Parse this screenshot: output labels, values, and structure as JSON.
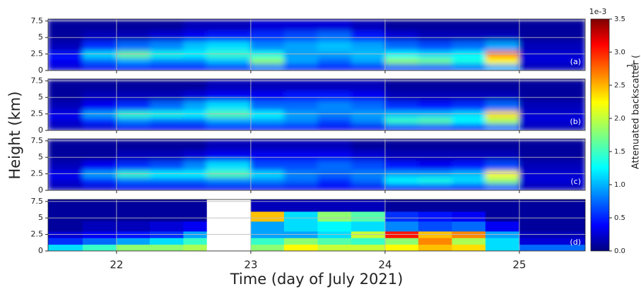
{
  "chart_data": [
    {
      "type": "heatmap",
      "label": "(a)",
      "xlim": [
        21.49,
        25.49
      ],
      "xticks": [
        22,
        23,
        24,
        25
      ],
      "ylim": [
        0,
        7.8
      ],
      "yticks": [
        0,
        2.5,
        5,
        7.5
      ],
      "x_bins": [
        21.49,
        21.75,
        22,
        22.25,
        22.5,
        22.67,
        23,
        23.25,
        23.5,
        23.75,
        24,
        24.25,
        24.5,
        24.75,
        25,
        25.49
      ],
      "y_bins": [
        0,
        1,
        2,
        3,
        4.5,
        6,
        7.8
      ],
      "clim": [
        0,
        3.5
      ],
      "colormap": "jet",
      "grid": true,
      "values": [
        [
          0.3,
          0.4,
          0.5,
          0.5,
          0.5,
          0.6,
          0.8,
          0.6,
          0.5,
          0.5,
          0.7,
          0.7,
          0.8,
          1.0,
          0.2
        ],
        [
          0.4,
          0.8,
          1.0,
          0.9,
          0.9,
          1.1,
          1.8,
          1.0,
          0.8,
          1.0,
          1.8,
          1.7,
          1.4,
          2.2,
          0.3
        ],
        [
          0.5,
          1.2,
          1.7,
          1.4,
          1.3,
          1.5,
          1.4,
          1.0,
          1.0,
          1.1,
          1.3,
          1.2,
          1.3,
          2.6,
          0.3
        ],
        [
          0.2,
          0.6,
          0.8,
          0.9,
          1.1,
          1.2,
          0.9,
          1.0,
          1.1,
          1.0,
          0.8,
          0.7,
          0.8,
          1.0,
          0.2
        ],
        [
          0.1,
          0.2,
          0.2,
          0.3,
          0.4,
          0.5,
          0.6,
          0.7,
          0.8,
          0.5,
          0.3,
          0.2,
          0.2,
          0.2,
          0.1
        ],
        [
          0.1,
          0.1,
          0.1,
          0.1,
          0.2,
          0.2,
          0.3,
          0.3,
          0.3,
          0.2,
          0.1,
          0.1,
          0.1,
          0.1,
          0.1
        ]
      ]
    },
    {
      "type": "heatmap",
      "label": "(b)",
      "xlim": [
        21.49,
        25.49
      ],
      "xticks": [
        22,
        23,
        24,
        25
      ],
      "ylim": [
        0,
        7.8
      ],
      "yticks": [
        0,
        2.5,
        5,
        7.5
      ],
      "x_bins": [
        21.49,
        21.75,
        22,
        22.25,
        22.5,
        22.67,
        23,
        23.25,
        23.5,
        23.75,
        24,
        24.25,
        24.5,
        24.75,
        25,
        25.49
      ],
      "y_bins": [
        0,
        1,
        2,
        3,
        4.5,
        6,
        7.8
      ],
      "clim": [
        0,
        3.5
      ],
      "colormap": "jet",
      "grid": true,
      "values": [
        [
          0.2,
          0.3,
          0.4,
          0.4,
          0.4,
          0.5,
          0.5,
          0.5,
          0.4,
          0.4,
          0.6,
          0.6,
          0.6,
          0.8,
          0.2
        ],
        [
          0.3,
          0.6,
          0.9,
          0.8,
          0.8,
          1.0,
          1.0,
          0.9,
          0.7,
          0.9,
          1.5,
          1.6,
          1.3,
          1.9,
          0.3
        ],
        [
          0.4,
          1.0,
          1.5,
          1.4,
          1.3,
          1.6,
          1.3,
          1.0,
          0.9,
          1.0,
          1.1,
          1.1,
          1.2,
          2.3,
          0.3
        ],
        [
          0.2,
          0.4,
          0.6,
          0.8,
          1.0,
          1.2,
          0.8,
          0.8,
          0.9,
          0.8,
          0.6,
          0.5,
          0.6,
          0.8,
          0.2
        ],
        [
          0.1,
          0.2,
          0.2,
          0.2,
          0.3,
          0.4,
          0.4,
          0.5,
          0.5,
          0.4,
          0.2,
          0.2,
          0.2,
          0.2,
          0.1
        ],
        [
          0.1,
          0.1,
          0.1,
          0.1,
          0.1,
          0.2,
          0.2,
          0.2,
          0.2,
          0.2,
          0.1,
          0.1,
          0.1,
          0.1,
          0.1
        ]
      ]
    },
    {
      "type": "heatmap",
      "label": "(c)",
      "xlim": [
        21.49,
        25.49
      ],
      "xticks": [
        22,
        23,
        24,
        25
      ],
      "ylim": [
        0,
        7.8
      ],
      "yticks": [
        0,
        2.5,
        5,
        7.5
      ],
      "x_bins": [
        21.49,
        21.75,
        22,
        22.25,
        22.5,
        22.67,
        23,
        23.25,
        23.5,
        23.75,
        24,
        24.25,
        24.5,
        24.75,
        25,
        25.49
      ],
      "y_bins": [
        0,
        1,
        2,
        3,
        4.5,
        6,
        7.8
      ],
      "clim": [
        0,
        3.5
      ],
      "colormap": "jet",
      "grid": true,
      "values": [
        [
          0.2,
          0.3,
          0.4,
          0.4,
          0.4,
          0.4,
          0.4,
          0.4,
          0.4,
          0.4,
          0.5,
          0.5,
          0.5,
          0.7,
          0.2
        ],
        [
          0.3,
          0.6,
          0.8,
          0.8,
          0.8,
          0.9,
          0.9,
          0.8,
          0.6,
          0.8,
          1.3,
          1.4,
          1.2,
          1.8,
          0.3
        ],
        [
          0.4,
          1.0,
          1.5,
          1.3,
          1.3,
          1.6,
          1.2,
          0.9,
          0.8,
          0.9,
          1.0,
          1.0,
          1.1,
          2.2,
          0.3
        ],
        [
          0.2,
          0.4,
          0.6,
          0.7,
          0.9,
          1.2,
          0.7,
          0.7,
          0.8,
          0.7,
          0.5,
          0.4,
          0.5,
          0.7,
          0.2
        ],
        [
          0.1,
          0.1,
          0.2,
          0.2,
          0.3,
          0.4,
          0.4,
          0.4,
          0.4,
          0.3,
          0.2,
          0.2,
          0.2,
          0.2,
          0.1
        ],
        [
          0.1,
          0.1,
          0.1,
          0.1,
          0.1,
          0.2,
          0.2,
          0.2,
          0.2,
          0.1,
          0.1,
          0.1,
          0.1,
          0.1,
          0.1
        ]
      ]
    },
    {
      "type": "heatmap",
      "label": "(d)",
      "xlim": [
        21.49,
        25.49
      ],
      "xticks": [
        22,
        23,
        24,
        25
      ],
      "ylim": [
        0,
        7.8
      ],
      "yticks": [
        0,
        2.5,
        5,
        7.5
      ],
      "x_bins": [
        21.49,
        21.75,
        22,
        22.25,
        22.5,
        22.67,
        23,
        23.25,
        23.5,
        23.75,
        24,
        24.25,
        24.5,
        24.75,
        25,
        25.49
      ],
      "y_bins": [
        0,
        1,
        2,
        3,
        4.5,
        6,
        7.8
      ],
      "clim": [
        0,
        3.5
      ],
      "colormap": "jet",
      "grid": true,
      "values": [
        [
          1.2,
          1.5,
          1.8,
          1.8,
          1.9,
          null,
          1.8,
          2.2,
          2.0,
          2.0,
          2.2,
          2.4,
          2.3,
          1.2,
          0.8
        ],
        [
          0.6,
          0.8,
          1.0,
          1.2,
          1.5,
          null,
          1.5,
          1.8,
          1.6,
          1.5,
          1.8,
          2.6,
          1.9,
          1.2,
          0.3
        ],
        [
          0.3,
          0.4,
          0.5,
          0.6,
          1.0,
          null,
          1.0,
          1.0,
          1.2,
          2.0,
          3.0,
          2.4,
          2.6,
          1.0,
          0.2
        ],
        [
          0.1,
          0.2,
          0.2,
          0.3,
          0.4,
          null,
          1.0,
          1.2,
          1.3,
          1.2,
          0.9,
          0.7,
          0.8,
          0.4,
          0.1
        ],
        [
          0.1,
          0.1,
          0.1,
          0.1,
          0.1,
          null,
          2.4,
          1.2,
          1.8,
          1.6,
          0.6,
          0.5,
          0.4,
          0.1,
          0.1
        ],
        [
          0.1,
          0.1,
          0.1,
          0.1,
          0.1,
          null,
          0.2,
          0.2,
          0.2,
          0.2,
          0.1,
          0.1,
          0.1,
          0.1,
          0.1
        ]
      ]
    }
  ],
  "ylabel": "Height (km)",
  "xlabel": "Time (day of July 2021)",
  "colorbar": {
    "label": "Attenuated backscatter (",
    "label_fraction": "1",
    "offset_text": "1e-3",
    "clim": [
      0,
      3.5
    ],
    "ticks": [
      {
        "value": 0,
        "label": "0.0"
      },
      0.5,
      {
        "value": 1,
        "label": "1.0"
      },
      1.5,
      {
        "value": 2,
        "label": "2.0"
      },
      2.5,
      {
        "value": 3,
        "label": "3.0"
      },
      3.5
    ]
  }
}
